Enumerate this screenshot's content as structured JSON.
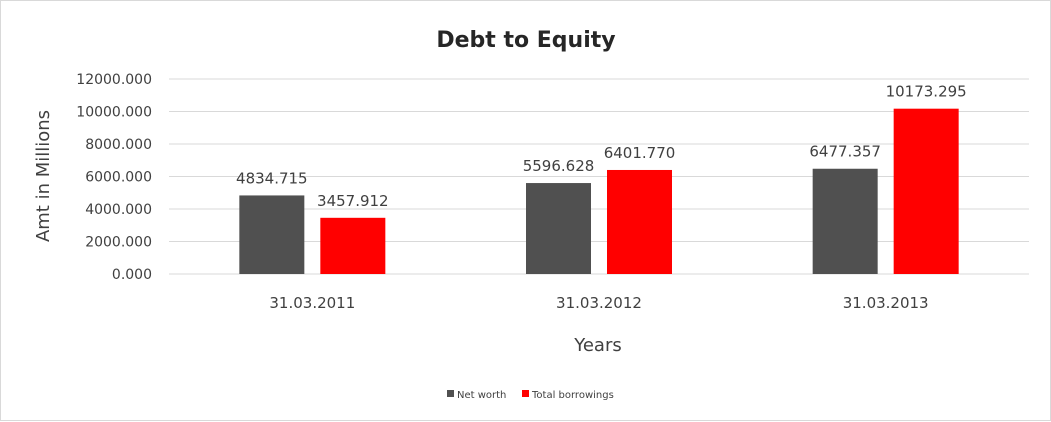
{
  "chart_data": {
    "type": "bar",
    "title": "Debt to Equity",
    "xlabel": "Years",
    "ylabel": "Amt in Millions",
    "categories": [
      "31.03.2011",
      "31.03.2012",
      "31.03.2013"
    ],
    "series": [
      {
        "name": "Net worth",
        "color": "#505050",
        "values": [
          4834.715,
          5596.628,
          6477.357
        ],
        "labels": [
          "4834.715",
          "5596.628",
          "6477.357"
        ]
      },
      {
        "name": "Total borrowings",
        "color": "#ff0000",
        "values": [
          3457.912,
          6401.77,
          10173.295
        ],
        "labels": [
          "3457.912",
          "6401.770",
          "10173.295"
        ]
      }
    ],
    "ylim": [
      0,
      12000
    ],
    "yticks": [
      0,
      2000,
      4000,
      6000,
      8000,
      10000,
      12000
    ],
    "ytick_labels": [
      "0.000",
      "2000.000",
      "4000.000",
      "6000.000",
      "8000.000",
      "10000.000",
      "12000.000"
    ],
    "grid": true,
    "gridline_color": "#d9d9d9",
    "legend_position": "bottom-center"
  }
}
